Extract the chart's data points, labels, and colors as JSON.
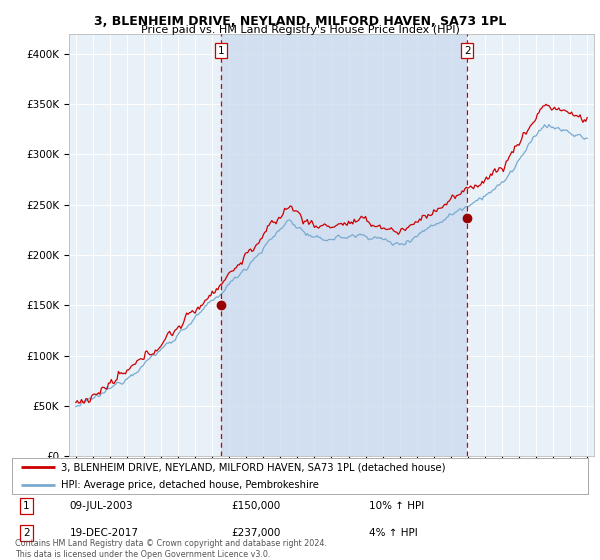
{
  "title": "3, BLENHEIM DRIVE, NEYLAND, MILFORD HAVEN, SA73 1PL",
  "subtitle": "Price paid vs. HM Land Registry's House Price Index (HPI)",
  "background_color": "#ffffff",
  "plot_bg_color": "#e8f0f8",
  "shade_color": "#c8d8ee",
  "ylim": [
    0,
    420000
  ],
  "yticks": [
    0,
    50000,
    100000,
    150000,
    200000,
    250000,
    300000,
    350000,
    400000
  ],
  "ytick_labels": [
    "£0",
    "£50K",
    "£100K",
    "£150K",
    "£200K",
    "£250K",
    "£300K",
    "£350K",
    "£400K"
  ],
  "sale1_date": 2003.52,
  "sale1_price": 150000,
  "sale1_label": "1",
  "sale1_info": "09-JUL-2003",
  "sale1_hpi": "10% ↑ HPI",
  "sale2_date": 2017.96,
  "sale2_price": 237000,
  "sale2_label": "2",
  "sale2_info": "19-DEC-2017",
  "sale2_hpi": "4% ↑ HPI",
  "legend_line1": "3, BLENHEIM DRIVE, NEYLAND, MILFORD HAVEN, SA73 1PL (detached house)",
  "legend_line2": "HPI: Average price, detached house, Pembrokeshire",
  "footer": "Contains HM Land Registry data © Crown copyright and database right 2024.\nThis data is licensed under the Open Government Licence v3.0.",
  "line_red_color": "#cc0000",
  "line_blue_color": "#7aaad0",
  "vline_color": "#cc0000",
  "marker_color": "#990000",
  "grid_color": "#ffffff",
  "xlim_left": 1994.6,
  "xlim_right": 2025.4
}
